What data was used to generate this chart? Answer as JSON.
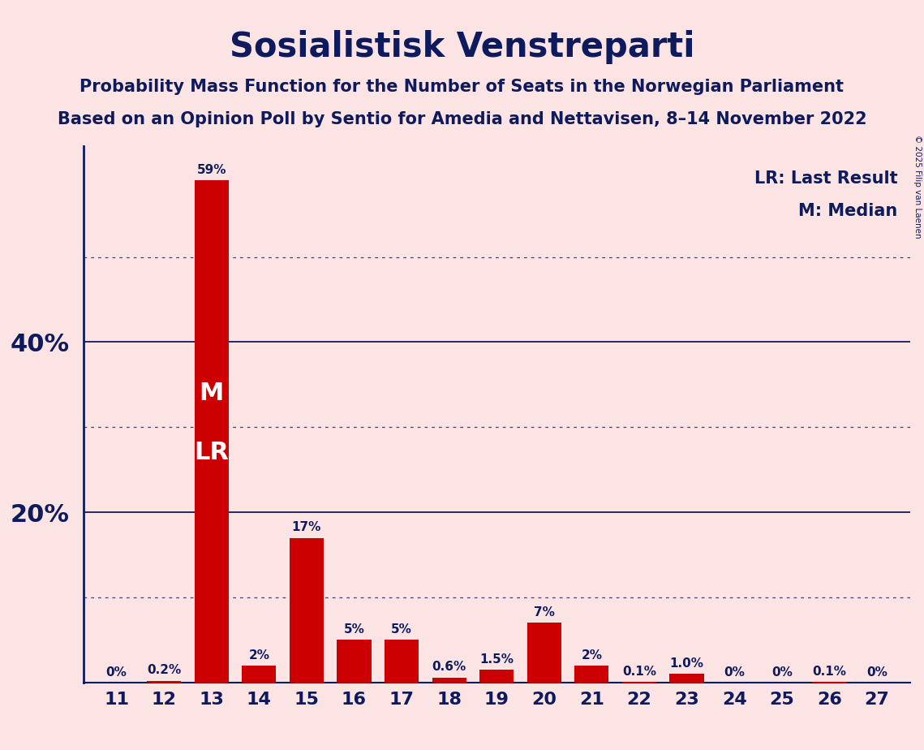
{
  "title": "Sosialistisk Venstreparti",
  "subtitle1": "Probability Mass Function for the Number of Seats in the Norwegian Parliament",
  "subtitle2": "Based on an Opinion Poll by Sentio for Amedia and Nettavisen, 8–14 November 2022",
  "seats": [
    11,
    12,
    13,
    14,
    15,
    16,
    17,
    18,
    19,
    20,
    21,
    22,
    23,
    24,
    25,
    26,
    27
  ],
  "probabilities": [
    0.0,
    0.2,
    59.0,
    2.0,
    17.0,
    5.0,
    5.0,
    0.6,
    1.5,
    7.0,
    2.0,
    0.1,
    1.0,
    0.0,
    0.0,
    0.1,
    0.0
  ],
  "bar_labels": [
    "0%",
    "0.2%",
    "59%",
    "2%",
    "17%",
    "5%",
    "5%",
    "0.6%",
    "1.5%",
    "7%",
    "2%",
    "0.1%",
    "1.0%",
    "0%",
    "0%",
    "0.1%",
    "0%"
  ],
  "bar_color": "#cc0000",
  "background_color": "#fce4e4",
  "title_color": "#0d1b5e",
  "label_color": "#0d1b5e",
  "bar_label_color_dark": "#0d1b5e",
  "bar_label_color_white": "#ffffff",
  "median_seat": 13,
  "lr_seat": 13,
  "legend_lr": "LR: Last Result",
  "legend_m": "M: Median",
  "major_yticks": [
    20,
    40
  ],
  "dotted_yticks": [
    10,
    30,
    50
  ],
  "copyright": "© 2025 Filip van Laenen",
  "ylim": [
    0,
    63
  ]
}
